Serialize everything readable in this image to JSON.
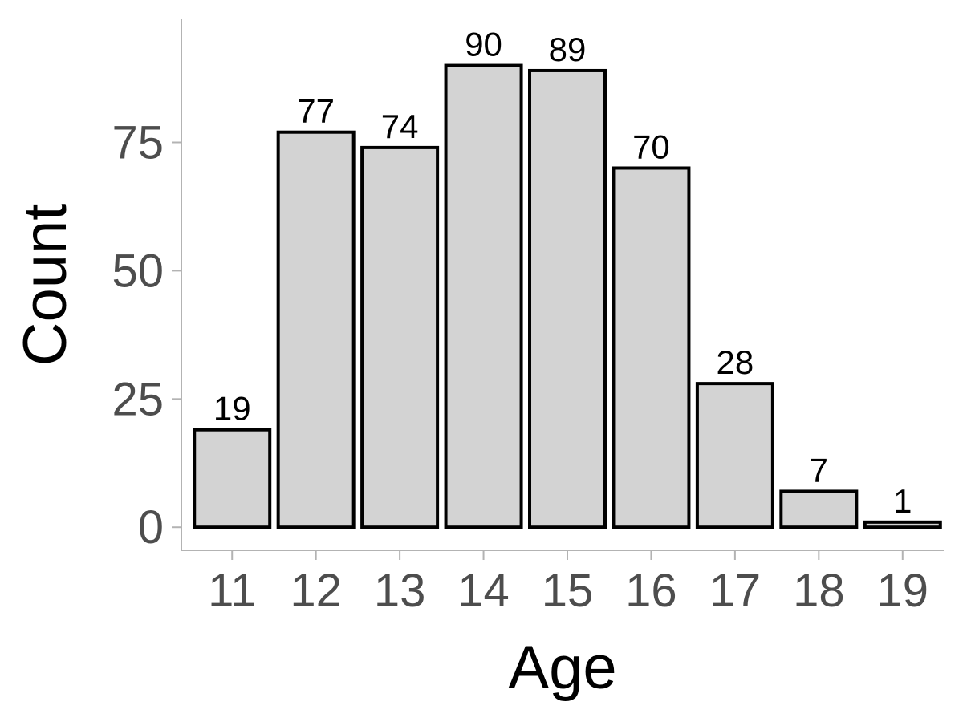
{
  "chart_data": {
    "type": "bar",
    "categories": [
      "11",
      "12",
      "13",
      "14",
      "15",
      "16",
      "17",
      "18",
      "19"
    ],
    "values": [
      19,
      77,
      74,
      90,
      89,
      70,
      28,
      7,
      1
    ],
    "data_labels": [
      "19",
      "77",
      "74",
      "90",
      "89",
      "70",
      "28",
      "7",
      "1"
    ],
    "xlabel": "Age",
    "ylabel": "Count",
    "ylim": [
      -4.5,
      99
    ],
    "yticks": [
      0,
      25,
      50,
      75
    ],
    "ytick_labels": [
      "0",
      "25",
      "50",
      "75"
    ],
    "grid": false,
    "legend": "none",
    "colors": {
      "bar_fill": "#d3d3d3",
      "bar_outline": "#000000",
      "axis": "#b3b3b3",
      "tick_text": "#4d4d4d",
      "title_text": "#000000"
    }
  }
}
